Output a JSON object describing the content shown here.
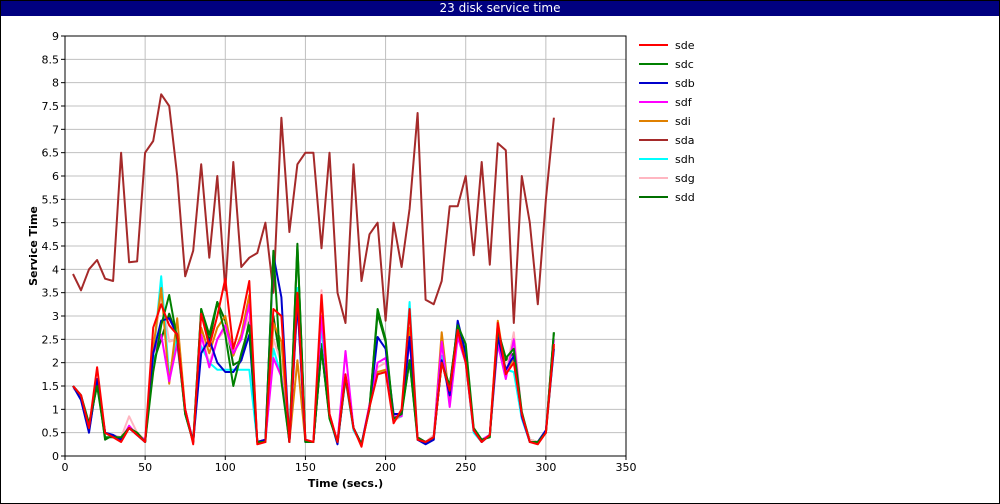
{
  "chart_data": {
    "type": "line",
    "title": "23 disk service time",
    "xlabel": "Time (secs.)",
    "ylabel": "Service Time",
    "xlim": [
      0,
      350
    ],
    "ylim": [
      0,
      9
    ],
    "xticks": [
      0,
      50,
      100,
      150,
      200,
      250,
      300,
      350
    ],
    "yticks": [
      0,
      0.5,
      1,
      1.5,
      2,
      2.5,
      3,
      3.5,
      4,
      4.5,
      5,
      5.5,
      6,
      6.5,
      7,
      7.5,
      8,
      8.5,
      9
    ],
    "grid": true,
    "legend_position": "right",
    "x": [
      5,
      10,
      15,
      20,
      25,
      30,
      35,
      40,
      45,
      50,
      55,
      60,
      65,
      70,
      75,
      80,
      85,
      90,
      95,
      100,
      105,
      110,
      115,
      120,
      125,
      130,
      135,
      140,
      145,
      150,
      155,
      160,
      165,
      170,
      175,
      180,
      185,
      190,
      195,
      200,
      205,
      210,
      215,
      220,
      225,
      230,
      235,
      240,
      245,
      250,
      255,
      260,
      265,
      270,
      275,
      280,
      285,
      290,
      295,
      300,
      305
    ],
    "series": [
      {
        "name": "sde",
        "color": "#ff0000",
        "values": [
          1.5,
          1.3,
          0.6,
          1.9,
          0.5,
          0.4,
          0.3,
          0.6,
          0.45,
          0.3,
          2.75,
          3.25,
          2.8,
          2.6,
          1.0,
          0.25,
          3.05,
          2.35,
          3.0,
          3.8,
          2.3,
          2.9,
          3.75,
          0.25,
          0.3,
          3.15,
          3.0,
          0.3,
          3.5,
          0.35,
          0.3,
          3.45,
          0.9,
          0.3,
          1.75,
          0.6,
          0.2,
          1.05,
          1.75,
          1.8,
          0.7,
          1.0,
          3.15,
          0.35,
          0.3,
          0.4,
          2.0,
          1.4,
          2.7,
          2.0,
          0.55,
          0.3,
          0.45,
          2.85,
          1.75,
          2.0,
          0.9,
          0.3,
          0.25,
          0.5,
          2.4
        ]
      },
      {
        "name": "sdc",
        "color": "#008000",
        "values": [
          1.5,
          1.3,
          0.7,
          1.5,
          0.4,
          0.4,
          0.4,
          0.6,
          0.5,
          0.3,
          1.8,
          2.8,
          3.45,
          2.5,
          0.9,
          0.3,
          3.15,
          2.6,
          3.3,
          2.6,
          1.5,
          2.2,
          2.8,
          0.3,
          0.3,
          4.4,
          1.6,
          0.3,
          4.5,
          0.3,
          0.3,
          2.3,
          0.8,
          0.3,
          1.7,
          0.6,
          0.25,
          1.0,
          3.15,
          2.5,
          0.8,
          0.9,
          2.05,
          0.4,
          0.3,
          0.4,
          2.0,
          1.5,
          2.8,
          2.4,
          0.6,
          0.35,
          0.4,
          2.7,
          2.1,
          2.3,
          0.95,
          0.3,
          0.3,
          0.5,
          2.65
        ]
      },
      {
        "name": "sdb",
        "color": "#0000cc",
        "values": [
          1.5,
          1.2,
          0.5,
          1.65,
          0.5,
          0.45,
          0.35,
          0.6,
          0.45,
          0.3,
          2.2,
          2.9,
          2.95,
          2.6,
          0.95,
          0.3,
          2.2,
          2.5,
          2.0,
          1.8,
          1.8,
          2.05,
          2.6,
          0.3,
          0.35,
          4.3,
          3.4,
          0.3,
          3.3,
          0.3,
          0.3,
          2.3,
          0.85,
          0.25,
          1.7,
          0.6,
          0.25,
          1.05,
          2.55,
          2.3,
          0.9,
          0.9,
          2.55,
          0.35,
          0.25,
          0.35,
          2.05,
          1.3,
          2.9,
          2.2,
          0.55,
          0.3,
          0.45,
          2.55,
          1.85,
          2.15,
          0.85,
          0.3,
          0.3,
          0.55,
          2.3
        ]
      },
      {
        "name": "sdf",
        "color": "#ff00ff",
        "values": [
          1.5,
          1.3,
          0.6,
          1.6,
          0.5,
          0.4,
          0.35,
          0.65,
          0.45,
          0.35,
          2.2,
          2.6,
          1.6,
          2.4,
          1.0,
          0.3,
          2.6,
          1.9,
          2.5,
          2.8,
          2.2,
          2.5,
          3.25,
          0.3,
          0.35,
          2.1,
          1.7,
          0.3,
          3.3,
          0.35,
          0.3,
          3.0,
          0.9,
          0.3,
          2.25,
          0.6,
          0.25,
          1.1,
          2.0,
          2.1,
          0.85,
          0.85,
          2.5,
          0.4,
          0.3,
          0.4,
          2.45,
          1.05,
          2.55,
          2.0,
          0.55,
          0.35,
          0.45,
          2.4,
          1.65,
          2.5,
          0.85,
          0.3,
          0.3,
          0.55,
          2.5
        ]
      },
      {
        "name": "sdi",
        "color": "#e08000",
        "values": [
          1.5,
          1.3,
          0.6,
          1.55,
          0.5,
          0.4,
          0.35,
          0.6,
          0.5,
          0.3,
          2.3,
          3.6,
          1.55,
          2.95,
          1.0,
          0.3,
          2.75,
          2.2,
          2.75,
          3.0,
          2.15,
          2.6,
          3.45,
          0.3,
          0.3,
          2.85,
          2.45,
          0.3,
          2.05,
          0.3,
          0.3,
          2.3,
          0.85,
          0.3,
          1.65,
          0.6,
          0.25,
          1.05,
          1.8,
          1.85,
          0.75,
          0.9,
          2.75,
          0.35,
          0.3,
          0.35,
          2.65,
          1.15,
          2.7,
          2.05,
          0.55,
          0.3,
          0.45,
          2.9,
          1.8,
          2.1,
          0.9,
          0.3,
          0.3,
          0.5,
          2.35
        ]
      },
      {
        "name": "sda",
        "color": "#a52a2a",
        "values": [
          3.9,
          3.55,
          4.0,
          4.2,
          3.8,
          3.75,
          6.5,
          4.15,
          4.17,
          6.5,
          6.75,
          7.75,
          7.5,
          6.0,
          3.85,
          4.4,
          6.25,
          4.25,
          6.0,
          3.55,
          6.3,
          4.05,
          4.25,
          4.35,
          5.0,
          3.5,
          7.25,
          4.8,
          6.25,
          6.5,
          6.5,
          4.45,
          6.5,
          3.5,
          2.85,
          6.25,
          3.75,
          4.75,
          5.0,
          2.9,
          5.0,
          4.05,
          5.3,
          7.35,
          3.35,
          3.25,
          3.75,
          5.35,
          5.35,
          6.0,
          4.3,
          6.3,
          4.1,
          6.7,
          6.55,
          2.85,
          6.0,
          5.0,
          3.25,
          5.5,
          7.25
        ]
      },
      {
        "name": "sdh",
        "color": "#00ffff",
        "values": [
          1.5,
          1.25,
          0.6,
          1.55,
          0.5,
          0.4,
          0.35,
          0.6,
          0.45,
          0.3,
          2.1,
          3.85,
          1.7,
          2.6,
          0.9,
          0.3,
          2.35,
          2.0,
          1.85,
          1.85,
          1.85,
          1.85,
          1.85,
          0.3,
          0.3,
          2.3,
          1.7,
          0.3,
          3.6,
          0.3,
          0.3,
          2.8,
          0.85,
          0.3,
          1.65,
          0.55,
          0.25,
          1.05,
          1.75,
          1.8,
          0.8,
          0.85,
          3.3,
          0.35,
          0.3,
          0.4,
          2.15,
          1.3,
          2.6,
          2.0,
          0.5,
          0.3,
          0.45,
          2.65,
          1.85,
          1.8,
          0.8,
          0.3,
          0.3,
          0.5,
          2.3
        ]
      },
      {
        "name": "sdg",
        "color": "#ffb6c1",
        "values": [
          1.45,
          1.3,
          0.6,
          1.6,
          0.5,
          0.45,
          0.4,
          0.85,
          0.5,
          0.35,
          2.2,
          3.5,
          2.45,
          2.5,
          1.0,
          0.3,
          2.6,
          2.0,
          2.5,
          2.7,
          2.2,
          2.55,
          3.0,
          0.3,
          0.35,
          2.5,
          2.0,
          0.3,
          3.3,
          0.3,
          0.3,
          3.55,
          0.9,
          0.3,
          1.7,
          0.6,
          0.25,
          1.1,
          1.9,
          2.0,
          0.75,
          0.85,
          2.6,
          0.35,
          0.3,
          0.45,
          2.5,
          1.2,
          2.6,
          2.0,
          0.55,
          0.35,
          0.45,
          2.55,
          1.75,
          2.65,
          0.9,
          0.35,
          0.3,
          0.55,
          2.4
        ]
      },
      {
        "name": "sdd",
        "color": "#007000",
        "values": [
          1.5,
          1.3,
          0.55,
          1.6,
          0.35,
          0.45,
          0.35,
          0.6,
          0.5,
          0.3,
          2.0,
          2.5,
          3.05,
          2.55,
          0.9,
          0.3,
          3.15,
          2.45,
          3.3,
          2.9,
          1.95,
          2.05,
          2.9,
          0.3,
          0.35,
          3.0,
          1.9,
          0.3,
          4.55,
          0.3,
          0.3,
          2.4,
          0.85,
          0.3,
          1.7,
          0.6,
          0.25,
          1.05,
          3.05,
          2.45,
          0.75,
          0.95,
          2.05,
          0.35,
          0.3,
          0.4,
          2.0,
          1.5,
          2.75,
          2.05,
          0.55,
          0.35,
          0.45,
          2.55,
          2.05,
          2.2,
          0.9,
          0.35,
          0.3,
          0.5,
          2.65
        ]
      }
    ]
  }
}
